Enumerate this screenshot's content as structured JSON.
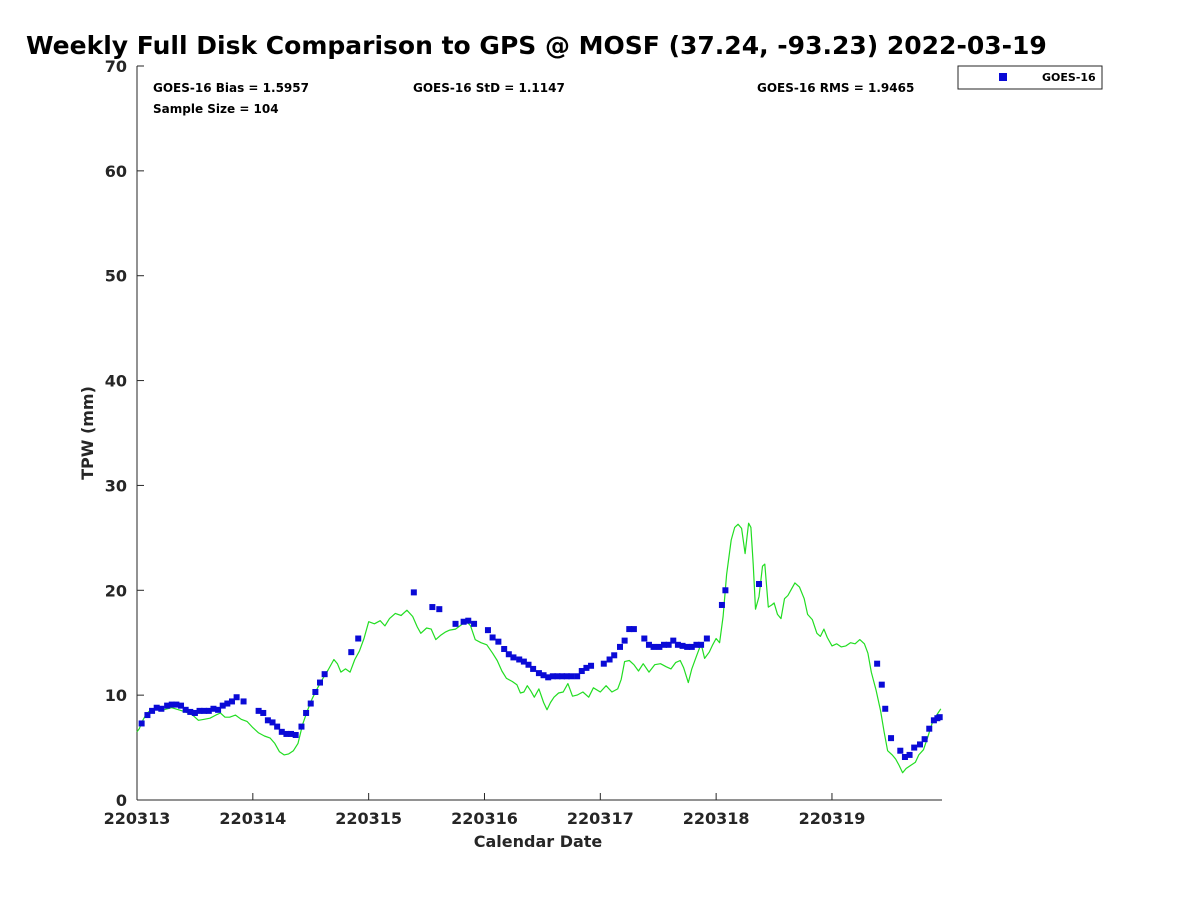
{
  "title": "Weekly Full Disk Comparison to GPS @ MOSF (37.24, -93.23) 2022-03-19",
  "stats": {
    "bias": "GOES-16 Bias = 1.5957",
    "std": "GOES-16 StD = 1.1147",
    "rms": "GOES-16 RMS = 1.9465",
    "sample": "Sample Size = 104"
  },
  "legend": {
    "label": "GOES-16"
  },
  "colors": {
    "goes": "#0a0ad6",
    "gps": "#22dd22",
    "axis": "#262626"
  },
  "chart_data": {
    "type": "scatter",
    "xlabel": "Calendar Date",
    "ylabel": "TPW (mm)",
    "xlim": [
      0,
      6.95
    ],
    "ylim": [
      0,
      70
    ],
    "x_ticks": [
      0,
      1,
      2,
      3,
      4,
      5,
      6
    ],
    "x_tick_labels": [
      "220313",
      "220314",
      "220315",
      "220316",
      "220317",
      "220318",
      "220319"
    ],
    "y_ticks": [
      0,
      10,
      20,
      30,
      40,
      50,
      60,
      70
    ],
    "grid": false,
    "legend_position": "top-right",
    "series": [
      {
        "name": "GOES-16",
        "marker": "square",
        "points": [
          [
            0.04,
            7.3
          ],
          [
            0.09,
            8.1
          ],
          [
            0.13,
            8.5
          ],
          [
            0.17,
            8.8
          ],
          [
            0.21,
            8.7
          ],
          [
            0.26,
            9.0
          ],
          [
            0.3,
            9.1
          ],
          [
            0.34,
            9.1
          ],
          [
            0.38,
            9.0
          ],
          [
            0.42,
            8.6
          ],
          [
            0.46,
            8.4
          ],
          [
            0.5,
            8.3
          ],
          [
            0.54,
            8.5
          ],
          [
            0.58,
            8.5
          ],
          [
            0.62,
            8.5
          ],
          [
            0.66,
            8.7
          ],
          [
            0.7,
            8.6
          ],
          [
            0.74,
            9.0
          ],
          [
            0.78,
            9.2
          ],
          [
            0.82,
            9.4
          ],
          [
            0.86,
            9.8
          ],
          [
            0.92,
            9.4
          ],
          [
            1.05,
            8.5
          ],
          [
            1.09,
            8.3
          ],
          [
            1.13,
            7.6
          ],
          [
            1.17,
            7.4
          ],
          [
            1.21,
            7.0
          ],
          [
            1.25,
            6.5
          ],
          [
            1.29,
            6.3
          ],
          [
            1.33,
            6.3
          ],
          [
            1.37,
            6.2
          ],
          [
            1.42,
            7.0
          ],
          [
            1.46,
            8.3
          ],
          [
            1.5,
            9.2
          ],
          [
            1.54,
            10.3
          ],
          [
            1.58,
            11.2
          ],
          [
            1.62,
            12.0
          ],
          [
            1.85,
            14.1
          ],
          [
            1.91,
            15.4
          ],
          [
            2.39,
            19.8
          ],
          [
            2.55,
            18.4
          ],
          [
            2.61,
            18.2
          ],
          [
            2.75,
            16.8
          ],
          [
            2.82,
            17.0
          ],
          [
            2.86,
            17.1
          ],
          [
            2.91,
            16.8
          ],
          [
            3.03,
            16.2
          ],
          [
            3.07,
            15.5
          ],
          [
            3.12,
            15.1
          ],
          [
            3.17,
            14.4
          ],
          [
            3.21,
            13.9
          ],
          [
            3.25,
            13.6
          ],
          [
            3.3,
            13.4
          ],
          [
            3.34,
            13.2
          ],
          [
            3.38,
            12.9
          ],
          [
            3.42,
            12.5
          ],
          [
            3.47,
            12.1
          ],
          [
            3.51,
            11.9
          ],
          [
            3.55,
            11.7
          ],
          [
            3.59,
            11.8
          ],
          [
            3.63,
            11.8
          ],
          [
            3.67,
            11.8
          ],
          [
            3.71,
            11.8
          ],
          [
            3.75,
            11.8
          ],
          [
            3.8,
            11.8
          ],
          [
            3.84,
            12.3
          ],
          [
            3.88,
            12.6
          ],
          [
            3.92,
            12.8
          ],
          [
            4.03,
            13.0
          ],
          [
            4.08,
            13.4
          ],
          [
            4.12,
            13.8
          ],
          [
            4.17,
            14.6
          ],
          [
            4.21,
            15.2
          ],
          [
            4.25,
            16.3
          ],
          [
            4.29,
            16.3
          ],
          [
            4.38,
            15.4
          ],
          [
            4.42,
            14.8
          ],
          [
            4.46,
            14.6
          ],
          [
            4.51,
            14.6
          ],
          [
            4.55,
            14.8
          ],
          [
            4.59,
            14.8
          ],
          [
            4.63,
            15.2
          ],
          [
            4.67,
            14.8
          ],
          [
            4.71,
            14.7
          ],
          [
            4.75,
            14.6
          ],
          [
            4.79,
            14.6
          ],
          [
            4.83,
            14.8
          ],
          [
            4.87,
            14.8
          ],
          [
            4.92,
            15.4
          ],
          [
            5.05,
            18.6
          ],
          [
            5.08,
            20.0
          ],
          [
            5.37,
            20.6
          ],
          [
            6.39,
            13.0
          ],
          [
            6.43,
            11.0
          ],
          [
            6.46,
            8.7
          ],
          [
            6.51,
            5.9
          ],
          [
            6.59,
            4.7
          ],
          [
            6.63,
            4.1
          ],
          [
            6.67,
            4.3
          ],
          [
            6.71,
            5.0
          ],
          [
            6.76,
            5.3
          ],
          [
            6.8,
            5.8
          ],
          [
            6.84,
            6.8
          ],
          [
            6.88,
            7.6
          ],
          [
            6.91,
            7.8
          ],
          [
            6.93,
            7.9
          ]
        ]
      },
      {
        "name": "",
        "style": "line",
        "points": [
          [
            0.0,
            6.5
          ],
          [
            0.02,
            6.8
          ],
          [
            0.05,
            7.6
          ],
          [
            0.08,
            8.2
          ],
          [
            0.12,
            8.6
          ],
          [
            0.17,
            8.8
          ],
          [
            0.23,
            8.6
          ],
          [
            0.3,
            8.8
          ],
          [
            0.36,
            8.6
          ],
          [
            0.42,
            8.4
          ],
          [
            0.48,
            8.1
          ],
          [
            0.53,
            7.6
          ],
          [
            0.58,
            7.7
          ],
          [
            0.63,
            7.8
          ],
          [
            0.68,
            8.1
          ],
          [
            0.72,
            8.3
          ],
          [
            0.76,
            7.9
          ],
          [
            0.8,
            7.9
          ],
          [
            0.85,
            8.1
          ],
          [
            0.9,
            7.7
          ],
          [
            0.95,
            7.5
          ],
          [
            1.0,
            6.9
          ],
          [
            1.05,
            6.4
          ],
          [
            1.1,
            6.1
          ],
          [
            1.15,
            5.9
          ],
          [
            1.19,
            5.4
          ],
          [
            1.23,
            4.6
          ],
          [
            1.27,
            4.3
          ],
          [
            1.31,
            4.4
          ],
          [
            1.35,
            4.7
          ],
          [
            1.39,
            5.4
          ],
          [
            1.43,
            7.2
          ],
          [
            1.47,
            8.5
          ],
          [
            1.51,
            9.6
          ],
          [
            1.55,
            10.5
          ],
          [
            1.6,
            11.5
          ],
          [
            1.65,
            12.4
          ],
          [
            1.7,
            13.4
          ],
          [
            1.73,
            13.0
          ],
          [
            1.76,
            12.2
          ],
          [
            1.8,
            12.5
          ],
          [
            1.84,
            12.2
          ],
          [
            1.88,
            13.4
          ],
          [
            1.92,
            14.2
          ],
          [
            1.96,
            15.4
          ],
          [
            2.0,
            17.0
          ],
          [
            2.05,
            16.8
          ],
          [
            2.1,
            17.1
          ],
          [
            2.14,
            16.6
          ],
          [
            2.18,
            17.3
          ],
          [
            2.23,
            17.8
          ],
          [
            2.28,
            17.6
          ],
          [
            2.33,
            18.1
          ],
          [
            2.38,
            17.5
          ],
          [
            2.42,
            16.5
          ],
          [
            2.45,
            15.9
          ],
          [
            2.5,
            16.4
          ],
          [
            2.54,
            16.3
          ],
          [
            2.58,
            15.3
          ],
          [
            2.62,
            15.7
          ],
          [
            2.66,
            16.0
          ],
          [
            2.7,
            16.2
          ],
          [
            2.75,
            16.3
          ],
          [
            2.8,
            16.7
          ],
          [
            2.84,
            17.1
          ],
          [
            2.88,
            16.6
          ],
          [
            2.92,
            15.3
          ],
          [
            2.97,
            15.0
          ],
          [
            3.02,
            14.8
          ],
          [
            3.07,
            14.0
          ],
          [
            3.11,
            13.3
          ],
          [
            3.15,
            12.3
          ],
          [
            3.19,
            11.6
          ],
          [
            3.24,
            11.3
          ],
          [
            3.28,
            11.0
          ],
          [
            3.31,
            10.2
          ],
          [
            3.34,
            10.3
          ],
          [
            3.37,
            10.9
          ],
          [
            3.4,
            10.4
          ],
          [
            3.43,
            9.8
          ],
          [
            3.47,
            10.6
          ],
          [
            3.51,
            9.3
          ],
          [
            3.54,
            8.6
          ],
          [
            3.57,
            9.3
          ],
          [
            3.6,
            9.8
          ],
          [
            3.64,
            10.2
          ],
          [
            3.68,
            10.3
          ],
          [
            3.72,
            11.1
          ],
          [
            3.76,
            9.9
          ],
          [
            3.8,
            10.0
          ],
          [
            3.85,
            10.3
          ],
          [
            3.9,
            9.8
          ],
          [
            3.94,
            10.7
          ],
          [
            4.0,
            10.3
          ],
          [
            4.05,
            10.9
          ],
          [
            4.1,
            10.3
          ],
          [
            4.15,
            10.6
          ],
          [
            4.18,
            11.5
          ],
          [
            4.21,
            13.2
          ],
          [
            4.25,
            13.3
          ],
          [
            4.29,
            12.9
          ],
          [
            4.33,
            12.3
          ],
          [
            4.37,
            13.0
          ],
          [
            4.42,
            12.2
          ],
          [
            4.47,
            12.9
          ],
          [
            4.52,
            13.0
          ],
          [
            4.57,
            12.7
          ],
          [
            4.61,
            12.5
          ],
          [
            4.65,
            13.1
          ],
          [
            4.69,
            13.3
          ],
          [
            4.72,
            12.6
          ],
          [
            4.76,
            11.2
          ],
          [
            4.79,
            12.5
          ],
          [
            4.83,
            13.7
          ],
          [
            4.87,
            14.9
          ],
          [
            4.9,
            13.5
          ],
          [
            4.94,
            14.1
          ],
          [
            4.97,
            14.8
          ],
          [
            5.0,
            15.4
          ],
          [
            5.03,
            15.0
          ],
          [
            5.06,
            17.5
          ],
          [
            5.09,
            21.5
          ],
          [
            5.13,
            24.8
          ],
          [
            5.16,
            26.0
          ],
          [
            5.19,
            26.3
          ],
          [
            5.22,
            25.9
          ],
          [
            5.25,
            23.5
          ],
          [
            5.28,
            26.4
          ],
          [
            5.3,
            26.0
          ],
          [
            5.32,
            22.5
          ],
          [
            5.34,
            18.2
          ],
          [
            5.37,
            19.4
          ],
          [
            5.4,
            22.3
          ],
          [
            5.42,
            22.5
          ],
          [
            5.45,
            18.4
          ],
          [
            5.48,
            18.6
          ],
          [
            5.5,
            18.8
          ],
          [
            5.53,
            17.7
          ],
          [
            5.56,
            17.3
          ],
          [
            5.59,
            19.2
          ],
          [
            5.62,
            19.5
          ],
          [
            5.65,
            20.1
          ],
          [
            5.68,
            20.7
          ],
          [
            5.72,
            20.3
          ],
          [
            5.76,
            19.2
          ],
          [
            5.79,
            17.7
          ],
          [
            5.83,
            17.2
          ],
          [
            5.87,
            15.9
          ],
          [
            5.9,
            15.6
          ],
          [
            5.93,
            16.3
          ],
          [
            5.96,
            15.5
          ],
          [
            6.0,
            14.7
          ],
          [
            6.04,
            14.9
          ],
          [
            6.08,
            14.6
          ],
          [
            6.12,
            14.7
          ],
          [
            6.16,
            15.0
          ],
          [
            6.2,
            14.9
          ],
          [
            6.24,
            15.3
          ],
          [
            6.28,
            14.9
          ],
          [
            6.31,
            14.0
          ],
          [
            6.34,
            12.2
          ],
          [
            6.38,
            10.5
          ],
          [
            6.42,
            8.5
          ],
          [
            6.45,
            6.5
          ],
          [
            6.48,
            4.7
          ],
          [
            6.52,
            4.3
          ],
          [
            6.55,
            3.9
          ],
          [
            6.58,
            3.3
          ],
          [
            6.61,
            2.6
          ],
          [
            6.64,
            3.0
          ],
          [
            6.68,
            3.3
          ],
          [
            6.72,
            3.6
          ],
          [
            6.75,
            4.3
          ],
          [
            6.79,
            4.8
          ],
          [
            6.83,
            6.1
          ],
          [
            6.87,
            7.5
          ],
          [
            6.91,
            8.2
          ],
          [
            6.94,
            8.7
          ]
        ]
      }
    ]
  }
}
